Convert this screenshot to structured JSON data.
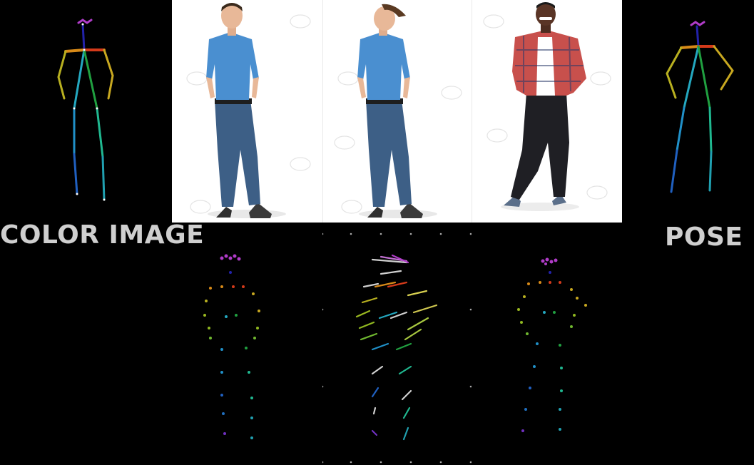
{
  "labels": {
    "color_image": "COLOR IMAGE",
    "pose": "POSE"
  },
  "photos": [
    {
      "subject": "man-blue-shirt-jeans",
      "shirt": "#4a8fd0",
      "jeans": "#3d5f86",
      "skin": "#e8b898",
      "hair": "#3a2a1c",
      "shoes": "#3a3a3a"
    },
    {
      "subject": "man-blue-shirt-jeans-head-swapped",
      "shirt": "#4a8fd0",
      "jeans": "#3d5f86",
      "skin": "#e8b898",
      "hair": "#5a3a22",
      "shoes": "#3a3a3a"
    },
    {
      "subject": "man-plaid-shirt-black-jeans",
      "shirt": "#c8504c",
      "jeans": "#1f1f24",
      "skin": "#5a3526",
      "hair": "#1a1a1a",
      "shoes": "#5b6f8a"
    }
  ],
  "colors": {
    "head": "#b03cc8",
    "neck": "#2222aa",
    "shoulder_r": "#d43a1a",
    "shoulder_l": "#d88a18",
    "arm_l": "#b8b020",
    "arm_r": "#90b820",
    "torso_l": "#24a8c0",
    "torso_r": "#20a040",
    "leg_l": "#2090c8",
    "leg_r": "#20b890"
  }
}
